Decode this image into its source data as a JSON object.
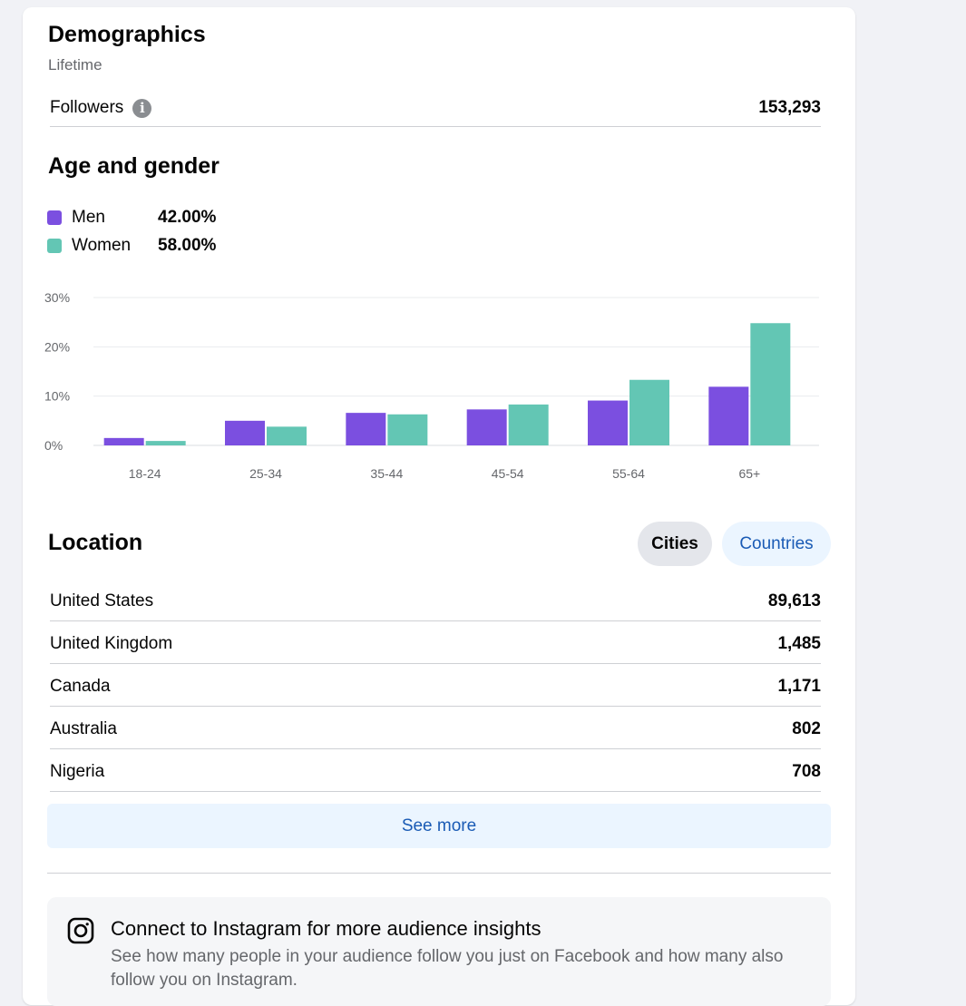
{
  "demographics": {
    "title": "Demographics",
    "subtitle": "Lifetime",
    "followers_label": "Followers",
    "followers_value": "153,293",
    "info_icon": "info-icon"
  },
  "age_gender": {
    "title": "Age and gender",
    "legend": [
      {
        "name": "Men",
        "value": "42.00%",
        "color": "#7b4fe0"
      },
      {
        "name": "Women",
        "value": "58.00%",
        "color": "#63c6b4"
      }
    ]
  },
  "chart_data": {
    "type": "bar",
    "categories": [
      "18-24",
      "25-34",
      "35-44",
      "45-54",
      "55-64",
      "65+"
    ],
    "series": [
      {
        "name": "Men",
        "values": [
          1.5,
          5.0,
          6.6,
          7.3,
          9.1,
          11.9
        ],
        "color": "#7b4fe0"
      },
      {
        "name": "Women",
        "values": [
          0.9,
          3.8,
          6.3,
          8.3,
          13.3,
          24.8
        ],
        "color": "#63c6b4"
      }
    ],
    "yticks": [
      "0%",
      "10%",
      "20%",
      "30%"
    ],
    "ylim": [
      0,
      30
    ],
    "grid": true,
    "title": "",
    "xlabel": "",
    "ylabel": ""
  },
  "location": {
    "title": "Location",
    "toggle_cities": "Cities",
    "toggle_countries": "Countries",
    "rows": [
      {
        "name": "United States",
        "value": "89,613"
      },
      {
        "name": "United Kingdom",
        "value": "1,485"
      },
      {
        "name": "Canada",
        "value": "1,171"
      },
      {
        "name": "Australia",
        "value": "802"
      },
      {
        "name": "Nigeria",
        "value": "708"
      }
    ],
    "see_more": "See more"
  },
  "instagram": {
    "icon": "instagram-icon",
    "title": "Connect to Instagram for more audience insights",
    "description": "See how many people in your audience follow you just on Facebook and how many also follow you on Instagram."
  }
}
